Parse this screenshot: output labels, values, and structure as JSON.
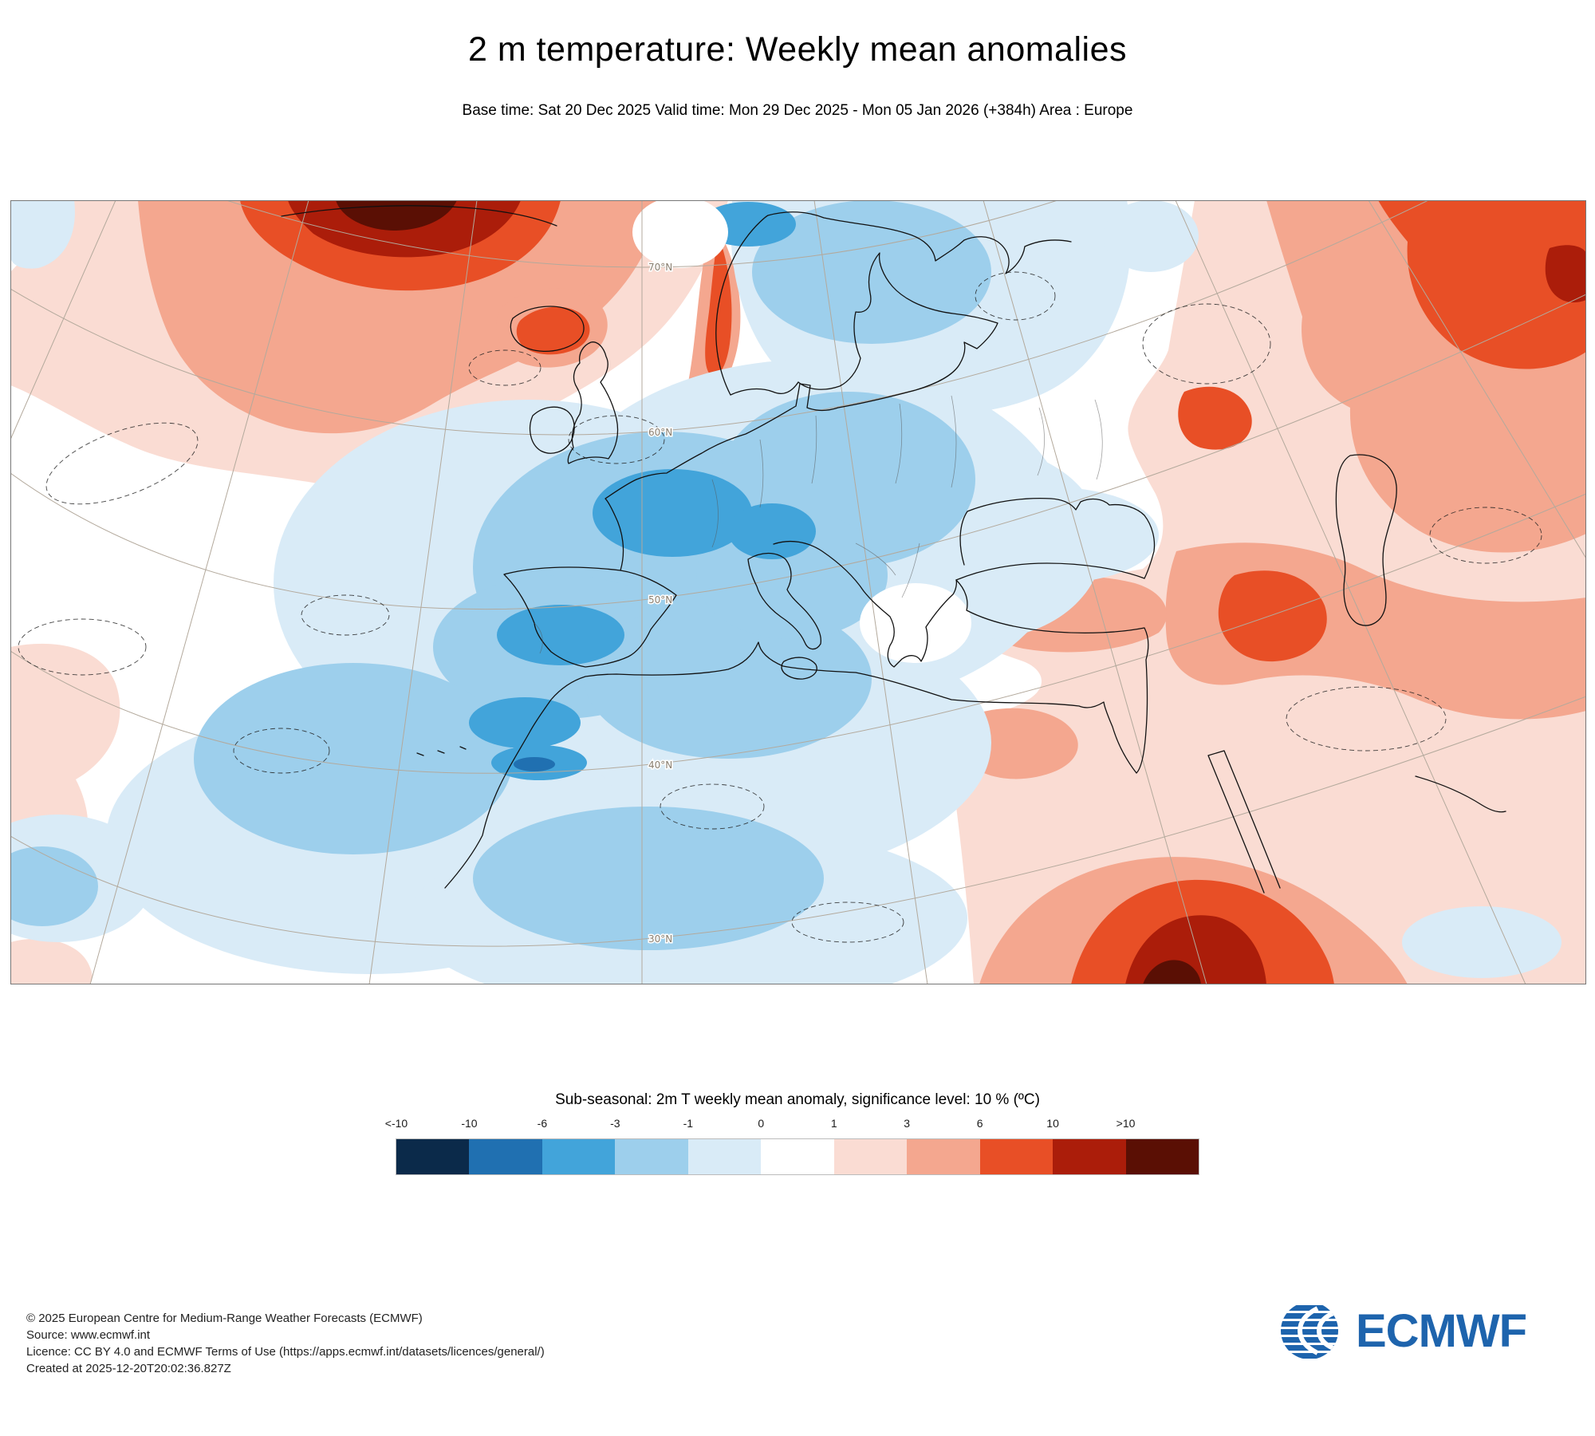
{
  "title": "2 m temperature: Weekly mean anomalies",
  "subtitle": "Base time: Sat 20 Dec 2025 Valid time: Mon 29 Dec 2025 - Mon 05 Jan 2026 (+384h) Area : Europe",
  "map": {
    "lat_labels": [
      "70°N",
      "60°N",
      "50°N",
      "40°N",
      "30°N"
    ]
  },
  "legend": {
    "title": "Sub-seasonal: 2m T weekly mean anomaly, significance level: 10 % (ºC)",
    "labels": [
      "<-10",
      "-10",
      "-6",
      "-3",
      "-1",
      "0",
      "1",
      "3",
      "6",
      "10",
      ">10"
    ],
    "colors": [
      "#0b2a4a",
      "#2070b1",
      "#42a4da",
      "#9dcfec",
      "#d9ebf7",
      "#ffffff",
      "#fadcd3",
      "#f4a78f",
      "#e84f26",
      "#ab1d0a",
      "#5a0f04"
    ]
  },
  "footer": {
    "lines": [
      "© 2025 European Centre for Medium-Range Weather Forecasts (ECMWF)",
      "Source: www.ecmwf.int",
      "Licence: CC BY 4.0 and ECMWF Terms of Use (https://apps.ecmwf.int/datasets/licences/general/)",
      "Created at 2025-12-20T20:02:36.827Z"
    ],
    "logo_text": "ECMWF",
    "logo_color": "#1e64ad"
  }
}
